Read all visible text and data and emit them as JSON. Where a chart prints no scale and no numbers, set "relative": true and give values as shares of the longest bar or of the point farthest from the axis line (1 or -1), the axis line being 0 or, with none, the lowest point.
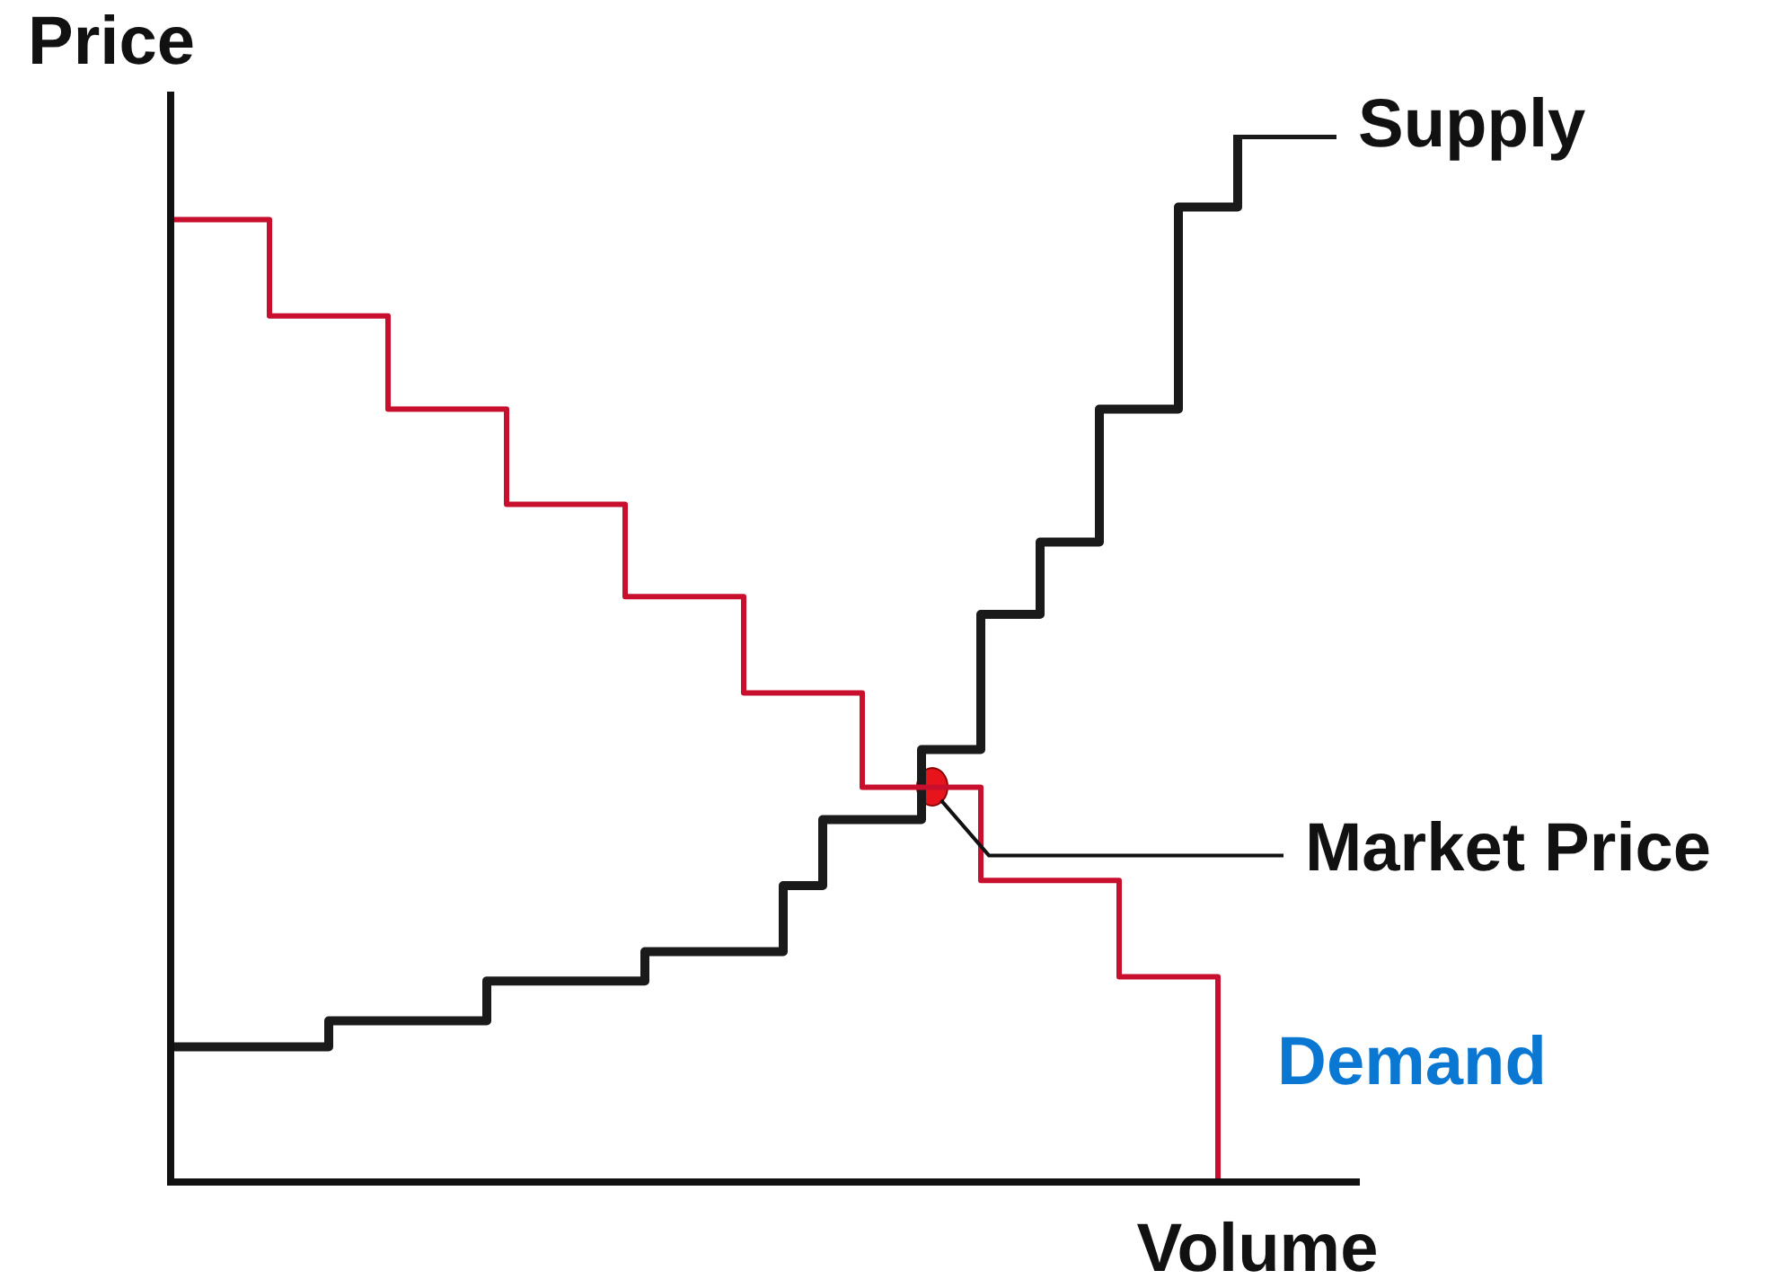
{
  "chart_data": {
    "type": "step",
    "relative": true,
    "xlabel": "Volume",
    "ylabel": "Price",
    "legend": false,
    "annotations": [
      "Market Price"
    ],
    "categories": [
      null,
      null,
      null,
      null,
      null,
      null,
      null,
      null,
      null,
      null,
      null,
      null,
      null,
      null,
      null,
      null,
      null,
      null,
      null,
      null,
      null,
      null,
      null,
      null,
      null,
      null,
      null,
      null,
      null,
      null,
      null,
      null,
      null,
      null,
      null,
      null,
      null,
      null,
      null,
      null,
      null,
      null,
      null,
      null,
      null,
      null,
      null,
      null,
      null,
      null,
      null,
      null,
      null,
      null,
      null,
      null,
      null,
      null,
      null,
      null,
      null
    ],
    "series": [
      {
        "name": "Demand",
        "color": "#c8102e",
        "values": [
          0.919,
          0.919,
          0.919,
          0.919,
          0.919,
          0.919,
          0.827,
          0.827,
          0.827,
          0.827,
          0.827,
          0.827,
          0.738,
          0.738,
          0.738,
          0.738,
          0.738,
          0.738,
          0.647,
          0.647,
          0.647,
          0.647,
          0.647,
          0.647,
          0.559,
          0.559,
          0.559,
          0.559,
          0.559,
          0.559,
          0.467,
          0.467,
          0.467,
          0.467,
          0.467,
          0.467,
          0.377,
          0.377,
          0.377,
          0.377,
          0.377,
          0.377,
          0.288,
          0.288,
          0.288,
          0.288,
          0.288,
          0.288,
          0.288,
          0.196,
          0.196,
          0.196,
          0.196,
          0.196,
          0,
          null,
          null,
          null,
          null,
          null,
          null
        ]
      },
      {
        "name": "Supply",
        "color": "#1a1a1a",
        "values": [
          0.129,
          0.129,
          0.129,
          0.129,
          0.129,
          0.129,
          0.129,
          0.129,
          0.129,
          0.154,
          0.154,
          0.154,
          0.154,
          0.154,
          0.154,
          0.154,
          0.154,
          0.192,
          0.192,
          0.192,
          0.192,
          0.192,
          0.192,
          0.192,
          0.192,
          0.22,
          0.22,
          0.22,
          0.22,
          0.22,
          0.22,
          0.22,
          0.283,
          0.283,
          0.346,
          0.346,
          0.346,
          0.346,
          0.346,
          0.413,
          0.413,
          0.413,
          0.542,
          0.542,
          0.542,
          0.611,
          0.611,
          0.611,
          0.738,
          0.738,
          0.738,
          0.738,
          0.931,
          0.931,
          0.931,
          1,
          1,
          1,
          1,
          1,
          null
        ]
      }
    ]
  }
}
